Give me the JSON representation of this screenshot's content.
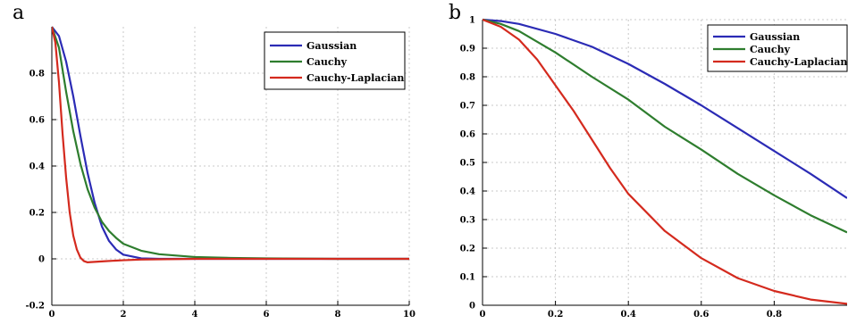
{
  "panels": [
    {
      "letter": "a"
    },
    {
      "letter": "b"
    }
  ],
  "colors": {
    "Gaussian": "#2b2bb5",
    "Cauchy": "#2e7d2e",
    "Cauchy-Laplacian": "#d42a1e",
    "grid": "#c8c8c8"
  },
  "chart_data": [
    {
      "type": "line",
      "title": "",
      "xlabel": "",
      "ylabel": "",
      "xlim": [
        0,
        10
      ],
      "ylim": [
        -0.2,
        1
      ],
      "grid": true,
      "legend_position": "top-right",
      "xticks": [
        0,
        2,
        4,
        6,
        8,
        10
      ],
      "xtick_labels": [
        "0",
        "2",
        "4",
        "6",
        "8",
        "10"
      ],
      "yticks": [
        -0.2,
        0,
        0.2,
        0.4,
        0.6,
        0.8
      ],
      "ytick_labels": [
        "-0.2",
        "0",
        "0.2",
        "0.4",
        "0.6",
        "0.8"
      ],
      "series": [
        {
          "name": "Gaussian",
          "x": [
            0,
            0.2,
            0.4,
            0.6,
            0.8,
            1,
            1.2,
            1.4,
            1.6,
            1.8,
            2,
            2.5,
            3,
            4,
            6,
            8,
            10
          ],
          "y": [
            1,
            0.96,
            0.85,
            0.7,
            0.53,
            0.37,
            0.24,
            0.14,
            0.077,
            0.04,
            0.018,
            0.002,
            0,
            0,
            0,
            0,
            0
          ]
        },
        {
          "name": "Cauchy",
          "x": [
            0,
            0.2,
            0.4,
            0.6,
            0.8,
            1,
            1.2,
            1.4,
            1.6,
            1.8,
            2,
            2.5,
            3,
            4,
            5,
            6,
            8,
            10
          ],
          "y": [
            1,
            0.91,
            0.72,
            0.55,
            0.41,
            0.3,
            0.22,
            0.16,
            0.12,
            0.09,
            0.065,
            0.035,
            0.02,
            0.008,
            0.004,
            0.002,
            0,
            0
          ]
        },
        {
          "name": "Cauchy-Laplacian",
          "x": [
            0,
            0.1,
            0.2,
            0.3,
            0.4,
            0.5,
            0.6,
            0.7,
            0.8,
            0.9,
            1,
            1.2,
            1.5,
            2,
            2.5,
            3,
            4,
            6,
            8,
            10
          ],
          "y": [
            1,
            0.93,
            0.76,
            0.54,
            0.35,
            0.2,
            0.1,
            0.04,
            0.005,
            -0.01,
            -0.015,
            -0.013,
            -0.01,
            -0.006,
            -0.003,
            -0.002,
            0,
            0,
            0,
            0
          ]
        }
      ]
    },
    {
      "type": "line",
      "title": "",
      "xlabel": "",
      "ylabel": "",
      "xlim": [
        0,
        1
      ],
      "ylim": [
        0,
        1
      ],
      "grid": true,
      "legend_position": "top-right",
      "xticks": [
        0,
        0.2,
        0.4,
        0.6,
        0.8
      ],
      "xtick_labels": [
        "0",
        "0.2",
        "0.4",
        "0.6",
        "0.8"
      ],
      "yticks": [
        0,
        0.1,
        0.2,
        0.3,
        0.4,
        0.5,
        0.6,
        0.7,
        0.8,
        0.9,
        1
      ],
      "ytick_labels": [
        "0",
        "0.1",
        "0.2",
        "0.3",
        "0.4",
        "0.5",
        "0.6",
        "0.7",
        "0.8",
        "0.9",
        "1"
      ],
      "series": [
        {
          "name": "Gaussian",
          "x": [
            0,
            0.05,
            0.1,
            0.2,
            0.3,
            0.4,
            0.5,
            0.6,
            0.7,
            0.8,
            0.9,
            1
          ],
          "y": [
            1,
            0.995,
            0.985,
            0.95,
            0.905,
            0.845,
            0.775,
            0.7,
            0.62,
            0.54,
            0.46,
            0.375
          ]
        },
        {
          "name": "Cauchy",
          "x": [
            0,
            0.05,
            0.1,
            0.2,
            0.3,
            0.4,
            0.5,
            0.6,
            0.7,
            0.8,
            0.9,
            1
          ],
          "y": [
            1,
            0.985,
            0.96,
            0.885,
            0.8,
            0.72,
            0.625,
            0.545,
            0.46,
            0.385,
            0.315,
            0.255
          ]
        },
        {
          "name": "Cauchy-Laplacian",
          "x": [
            0,
            0.05,
            0.1,
            0.15,
            0.2,
            0.25,
            0.3,
            0.35,
            0.4,
            0.5,
            0.6,
            0.7,
            0.8,
            0.9,
            1
          ],
          "y": [
            1,
            0.975,
            0.93,
            0.86,
            0.77,
            0.68,
            0.58,
            0.48,
            0.39,
            0.26,
            0.165,
            0.095,
            0.05,
            0.02,
            0.005
          ]
        }
      ]
    }
  ]
}
